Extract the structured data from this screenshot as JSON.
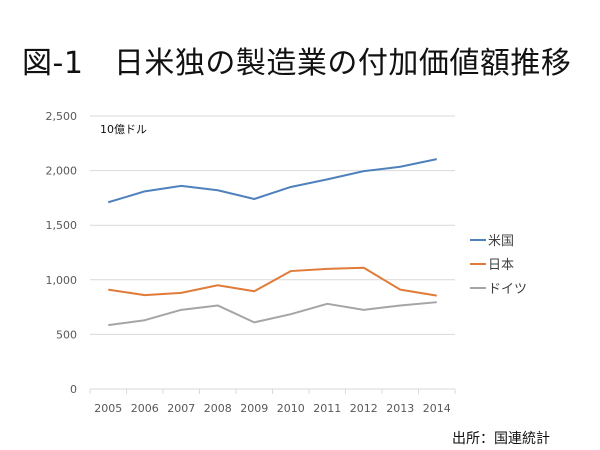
{
  "page": {
    "title": "図-1　日米独の製造業の付加価値額推移",
    "source": "出所：国連統計"
  },
  "chart_data": {
    "type": "line",
    "title": "図-1　日米独の製造業の付加価値額推移",
    "unit_label": "10億ドル",
    "xlabel": "",
    "ylabel": "10億ドル",
    "categories": [
      "2005",
      "2006",
      "2007",
      "2008",
      "2009",
      "2010",
      "2011",
      "2012",
      "2013",
      "2014"
    ],
    "ylim": [
      0,
      2500
    ],
    "yticks": [
      0,
      500,
      1000,
      1500,
      2000,
      2500
    ],
    "ytick_labels": [
      "0",
      "500",
      "1,000",
      "1,500",
      "2,000",
      "2,500"
    ],
    "grid": true,
    "legend_position": "right",
    "series": [
      {
        "name": "米国",
        "color": "#4f81bd",
        "values": [
          1710,
          1810,
          1860,
          1820,
          1740,
          1850,
          1920,
          1995,
          2035,
          2105
        ]
      },
      {
        "name": "日本",
        "color": "#e07b39",
        "values": [
          910,
          860,
          880,
          950,
          895,
          1080,
          1100,
          1110,
          910,
          855
        ]
      },
      {
        "name": "ドイツ",
        "color": "#a5a5a5",
        "values": [
          585,
          630,
          725,
          765,
          610,
          685,
          780,
          725,
          765,
          795
        ]
      }
    ]
  }
}
